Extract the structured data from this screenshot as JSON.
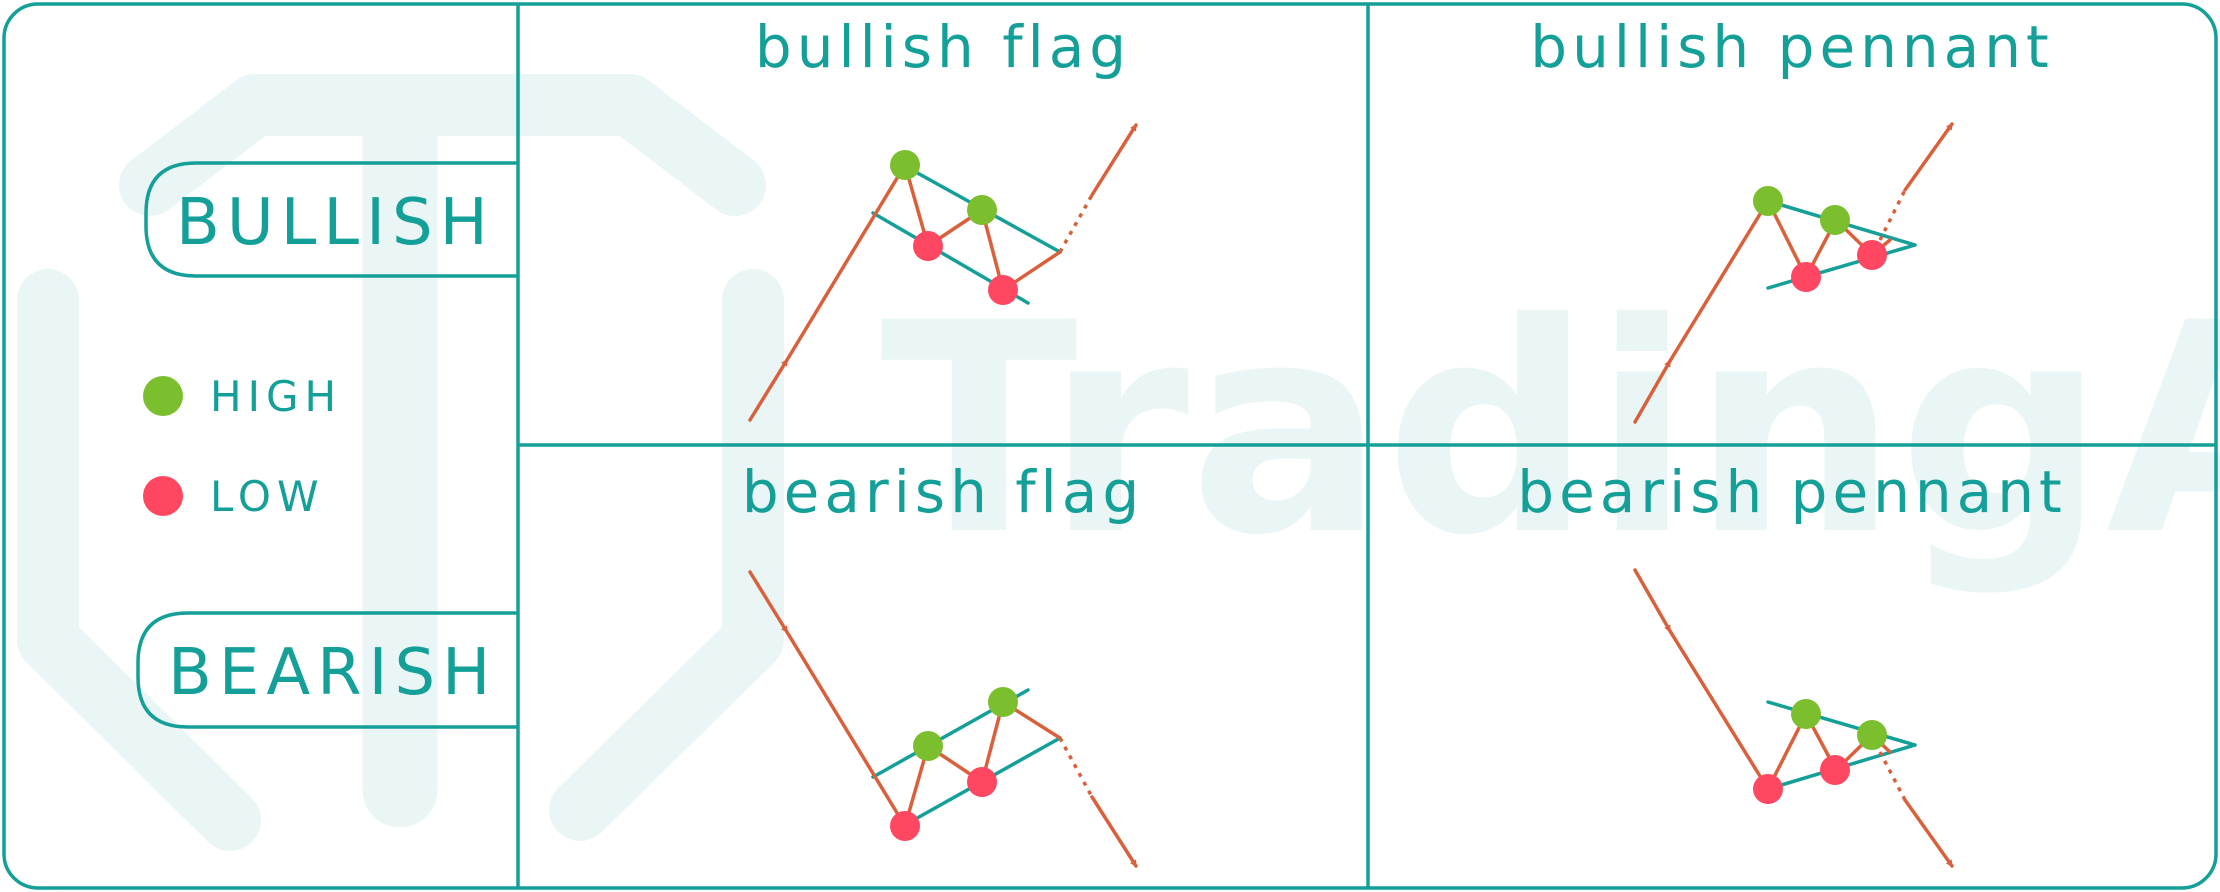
{
  "colors": {
    "teal": "#149f98",
    "orange": "#d9603b",
    "high": "#7bbe2e",
    "low": "#ff4762",
    "watermark": "#eaf6f5"
  },
  "watermark": {
    "text": "TradingAxe",
    "icon": "trading-axe-logo"
  },
  "badges": {
    "bullish": "BULLISH",
    "bearish": "BEARISH"
  },
  "legend": {
    "high": "HIGH",
    "low": "LOW"
  },
  "panels": {
    "bullish_flag": "bullish flag",
    "bullish_pennant": "bullish pennant",
    "bearish_flag": "bearish flag",
    "bearish_pennant": "bearish pennant"
  }
}
